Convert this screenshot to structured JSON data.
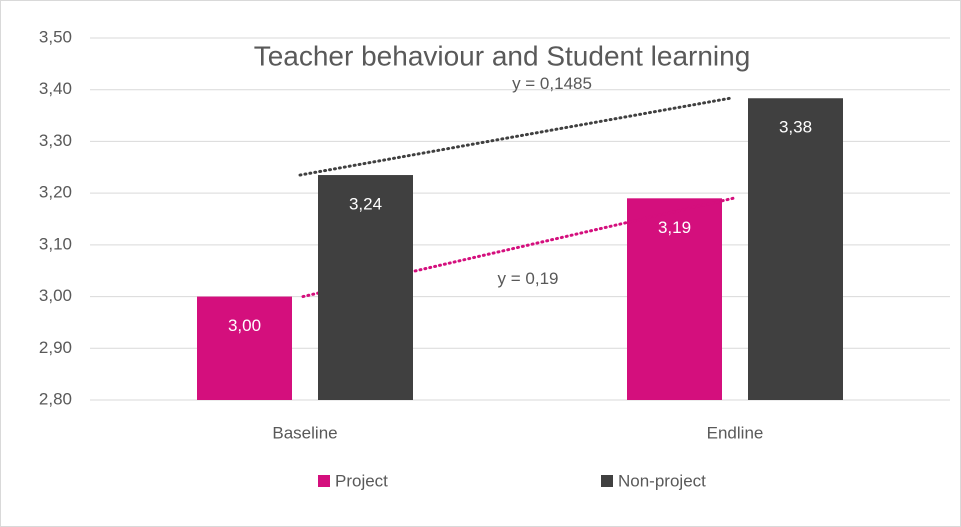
{
  "chart_data": {
    "type": "bar",
    "title": "Teacher behaviour and Student learning",
    "categories": [
      "Baseline",
      "Endline"
    ],
    "series": [
      {
        "name": "Project",
        "color": "#d40f7d",
        "values": [
          3.0,
          3.19
        ],
        "value_labels": [
          "3,00",
          "3,19"
        ],
        "trendline_label": "y = 0,19"
      },
      {
        "name": "Non-project",
        "color": "#404040",
        "values": [
          3.235,
          3.3835
        ],
        "value_labels": [
          "3,24",
          "3,38"
        ],
        "trendline_label": "y = 0,1485"
      }
    ],
    "ylim": [
      2.8,
      3.5
    ],
    "yticks": [
      {
        "value": 2.8,
        "label": "2,80"
      },
      {
        "value": 2.9,
        "label": "2,90"
      },
      {
        "value": 3.0,
        "label": "3,00"
      },
      {
        "value": 3.1,
        "label": "3,10"
      },
      {
        "value": 3.2,
        "label": "3,20"
      },
      {
        "value": 3.3,
        "label": "3,30"
      },
      {
        "value": 3.4,
        "label": "3,40"
      },
      {
        "value": 3.5,
        "label": "3,50"
      }
    ],
    "grid": true,
    "legend": "bottom"
  }
}
